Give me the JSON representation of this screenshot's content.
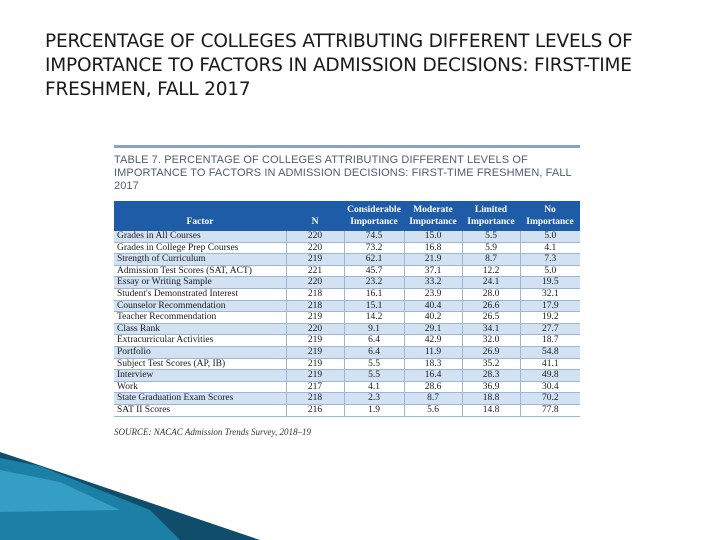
{
  "slide": {
    "title": "PERCENTAGE OF COLLEGES ATTRIBUTING DIFFERENT LEVELS OF IMPORTANCE TO FACTORS IN ADMISSION DECISIONS: FIRST-TIME FRESHMEN, FALL 2017"
  },
  "table": {
    "caption": "TABLE 7. PERCENTAGE OF COLLEGES ATTRIBUTING DIFFERENT LEVELS OF IMPORTANCE TO FACTORS IN ADMISSION DECISIONS: FIRST-TIME FRESHMEN, FALL 2017",
    "headers": {
      "factor": "Factor",
      "n": "N",
      "considerable": "Considerable Importance",
      "moderate": "Moderate Importance",
      "limited": "Limited Importance",
      "none": "No Importance"
    },
    "rows": [
      {
        "factor": "Grades in All Courses",
        "n": "220",
        "considerable": "74.5",
        "moderate": "15.0",
        "limited": "5.5",
        "none": "5.0"
      },
      {
        "factor": "Grades in College Prep Courses",
        "n": "220",
        "considerable": "73.2",
        "moderate": "16.8",
        "limited": "5.9",
        "none": "4.1"
      },
      {
        "factor": "Strength of Curriculum",
        "n": "219",
        "considerable": "62.1",
        "moderate": "21.9",
        "limited": "8.7",
        "none": "7.3"
      },
      {
        "factor": "Admission Test Scores (SAT, ACT)",
        "n": "221",
        "considerable": "45.7",
        "moderate": "37.1",
        "limited": "12.2",
        "none": "5.0"
      },
      {
        "factor": "Essay or Writing Sample",
        "n": "220",
        "considerable": "23.2",
        "moderate": "33.2",
        "limited": "24.1",
        "none": "19.5"
      },
      {
        "factor": "Student's Demonstrated Interest",
        "n": "218",
        "considerable": "16.1",
        "moderate": "23.9",
        "limited": "28.0",
        "none": "32.1"
      },
      {
        "factor": "Counselor Recommendation",
        "n": "218",
        "considerable": "15.1",
        "moderate": "40.4",
        "limited": "26.6",
        "none": "17.9"
      },
      {
        "factor": "Teacher Recommendation",
        "n": "219",
        "considerable": "14.2",
        "moderate": "40.2",
        "limited": "26.5",
        "none": "19.2"
      },
      {
        "factor": "Class Rank",
        "n": "220",
        "considerable": "9.1",
        "moderate": "29.1",
        "limited": "34.1",
        "none": "27.7"
      },
      {
        "factor": "Extracurricular Activities",
        "n": "219",
        "considerable": "6.4",
        "moderate": "42.9",
        "limited": "32.0",
        "none": "18.7"
      },
      {
        "factor": "Portfolio",
        "n": "219",
        "considerable": "6.4",
        "moderate": "11.9",
        "limited": "26.9",
        "none": "54.8"
      },
      {
        "factor": "Subject Test Scores (AP, IB)",
        "n": "219",
        "considerable": "5.5",
        "moderate": "18.3",
        "limited": "35.2",
        "none": "41.1"
      },
      {
        "factor": "Interview",
        "n": "219",
        "considerable": "5.5",
        "moderate": "16.4",
        "limited": "28.3",
        "none": "49.8"
      },
      {
        "factor": "Work",
        "n": "217",
        "considerable": "4.1",
        "moderate": "28.6",
        "limited": "36.9",
        "none": "30.4"
      },
      {
        "factor": "State Graduation Exam Scores",
        "n": "218",
        "considerable": "2.3",
        "moderate": "8.7",
        "limited": "18.8",
        "none": "70.2"
      },
      {
        "factor": "SAT II Scores",
        "n": "216",
        "considerable": "1.9",
        "moderate": "5.6",
        "limited": "14.8",
        "none": "77.8"
      }
    ],
    "source": "SOURCE: NACAC Admission Trends Survey, 2018–19"
  },
  "colors": {
    "header_blue": "#1f5ca8",
    "row_tint": "#d3e2f3",
    "deco_teal": "#1b7fa6",
    "deco_dark": "#0f4d6b"
  }
}
